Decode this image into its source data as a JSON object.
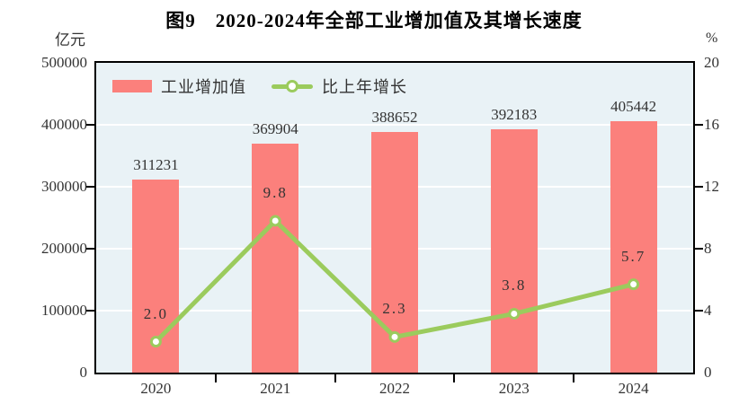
{
  "title": "图9　2020-2024年全部工业增加值及其增长速度",
  "axes": {
    "left": {
      "unit": "亿元",
      "ticks": [
        "500000",
        "400000",
        "300000",
        "200000",
        "100000",
        "0"
      ]
    },
    "right": {
      "unit": "%",
      "ticks": [
        "20",
        "16",
        "12",
        "8",
        "4",
        "0"
      ]
    },
    "x": {
      "ticks": [
        "2020",
        "2021",
        "2022",
        "2023",
        "2024"
      ]
    }
  },
  "legend": {
    "bar_label": "工业增加值",
    "line_label": "比上年增长"
  },
  "colors": {
    "bar": "#FB807C",
    "line": "#9BCB5D",
    "marker_fill": "#FFFFFF",
    "plot_background": "#E9F2F6",
    "gridline": "#FFFFFF",
    "axis": "#000000",
    "text": "#333333"
  },
  "chart_data": {
    "type": "bar+line",
    "title": "图9　2020-2024年全部工业增加值及其增长速度",
    "categories": [
      "2020",
      "2021",
      "2022",
      "2023",
      "2024"
    ],
    "series": [
      {
        "name": "工业增加值",
        "type": "bar",
        "axis": "left",
        "values": [
          311231,
          369904,
          388652,
          392183,
          405442
        ],
        "labels": [
          "311231",
          "369904",
          "388652",
          "392183",
          "405442"
        ]
      },
      {
        "name": "比上年增长",
        "type": "line",
        "axis": "right",
        "values": [
          2.0,
          9.8,
          2.3,
          3.8,
          5.7
        ],
        "labels": [
          "2.0",
          "9.8",
          "2.3",
          "3.8",
          "5.7"
        ]
      }
    ],
    "ylabel_left": "亿元",
    "ylabel_right": "%",
    "ylim_left": [
      0,
      500000
    ],
    "ylim_right": [
      0,
      20
    ],
    "grid": true,
    "legend_position": "top-left-inside"
  }
}
